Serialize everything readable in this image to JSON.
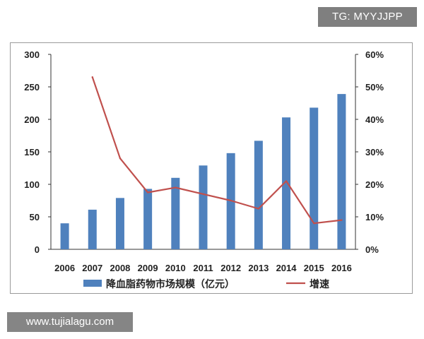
{
  "watermark_top": "TG: MYYJJPP",
  "watermark_bottom": "www.tujialagu.com",
  "chart_data": {
    "type": "bar+line",
    "categories": [
      "2006",
      "2007",
      "2008",
      "2009",
      "2010",
      "2011",
      "2012",
      "2013",
      "2014",
      "2015",
      "2016"
    ],
    "series": [
      {
        "name": "降血脂药物市场规模（亿元）",
        "type": "bar",
        "axis": "left",
        "color": "#4f81bd",
        "values": [
          40,
          61,
          79,
          93,
          110,
          129,
          148,
          167,
          203,
          218,
          239
        ]
      },
      {
        "name": "增速",
        "type": "line",
        "axis": "right",
        "color": "#c0504d",
        "values": [
          null,
          53,
          28,
          17.5,
          19,
          17,
          15,
          12.5,
          21,
          8,
          9
        ]
      }
    ],
    "y_left": {
      "min": 0,
      "max": 300,
      "ticks": [
        "0",
        "50",
        "100",
        "150",
        "200",
        "250",
        "300"
      ]
    },
    "y_right": {
      "min": 0,
      "max": 60,
      "ticks": [
        "0%",
        "10%",
        "20%",
        "30%",
        "40%",
        "50%",
        "60%"
      ]
    },
    "legend": {
      "position": "bottom"
    }
  }
}
